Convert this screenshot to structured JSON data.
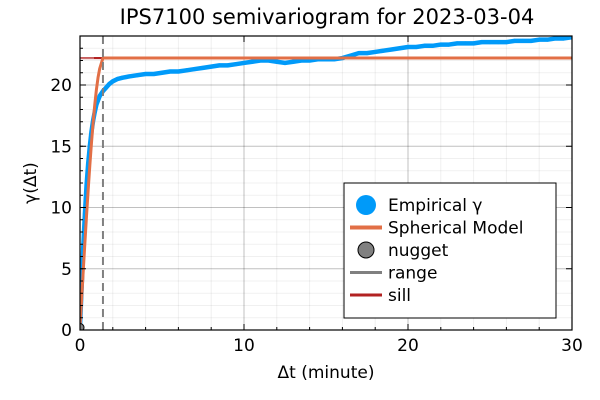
{
  "chart_data": {
    "type": "line",
    "title": "IPS7100 semivariogram for 2023-03-04",
    "xlabel": "Δt (minute)",
    "ylabel": "γ(Δt)",
    "xlim": [
      0,
      30
    ],
    "ylim": [
      0,
      24
    ],
    "x_ticks": [
      0,
      10,
      20,
      30
    ],
    "y_ticks": [
      0,
      5,
      10,
      15,
      20
    ],
    "grid": true,
    "minor_grid": true,
    "legend_position": "bottom-right",
    "legend": [
      {
        "label": "Empirical γ",
        "marker": "circle",
        "color": "#009af9"
      },
      {
        "label": "Spherical Model",
        "marker": "line",
        "color": "#e26f46"
      },
      {
        "label": "nugget",
        "marker": "circle",
        "color": "#808080"
      },
      {
        "label": "range",
        "marker": "line",
        "color": "#808080"
      },
      {
        "label": "sill",
        "marker": "line",
        "color": "#b22222"
      }
    ],
    "series": [
      {
        "name": "Empirical γ",
        "style": "markers",
        "color": "#009af9",
        "x": [
          0.0,
          0.1,
          0.2,
          0.3,
          0.4,
          0.5,
          0.6,
          0.7,
          0.8,
          0.9,
          1.0,
          1.2,
          1.4,
          1.6,
          1.8,
          2.0,
          2.3,
          2.6,
          3.0,
          3.5,
          4.0,
          4.5,
          5.0,
          5.5,
          6.0,
          6.5,
          7.0,
          7.5,
          8.0,
          8.5,
          9.0,
          9.5,
          10.0,
          10.5,
          11.0,
          11.5,
          12.0,
          12.5,
          13.0,
          13.5,
          14.0,
          14.5,
          15.0,
          15.5,
          16.0,
          16.5,
          17.0,
          17.5,
          18.0,
          18.5,
          19.0,
          19.5,
          20.0,
          20.5,
          21.0,
          21.5,
          22.0,
          22.5,
          23.0,
          23.5,
          24.0,
          24.5,
          25.0,
          25.5,
          26.0,
          26.5,
          27.0,
          27.5,
          28.0,
          28.5,
          29.0,
          29.5,
          30.0
        ],
        "y": [
          0.3,
          3.5,
          6.8,
          9.5,
          11.8,
          13.6,
          15.0,
          16.2,
          17.1,
          17.8,
          18.4,
          19.1,
          19.5,
          19.8,
          20.1,
          20.3,
          20.5,
          20.6,
          20.7,
          20.8,
          20.9,
          20.9,
          21.0,
          21.1,
          21.1,
          21.2,
          21.3,
          21.4,
          21.5,
          21.6,
          21.6,
          21.7,
          21.8,
          21.9,
          22.0,
          22.0,
          21.9,
          21.8,
          21.9,
          22.0,
          22.0,
          22.1,
          22.1,
          22.1,
          22.2,
          22.4,
          22.6,
          22.6,
          22.7,
          22.8,
          22.9,
          23.0,
          23.1,
          23.1,
          23.2,
          23.2,
          23.3,
          23.3,
          23.4,
          23.4,
          23.4,
          23.5,
          23.5,
          23.5,
          23.5,
          23.6,
          23.6,
          23.6,
          23.7,
          23.7,
          23.8,
          23.8,
          23.9
        ]
      },
      {
        "name": "Spherical Model",
        "style": "line",
        "color": "#e26f46",
        "nugget": 0.2,
        "sill": 22.2,
        "range": 1.4,
        "x": [
          0.0,
          0.1,
          0.2,
          0.3,
          0.4,
          0.5,
          0.6,
          0.7,
          0.8,
          0.9,
          1.0,
          1.1,
          1.2,
          1.3,
          1.4,
          30.0
        ],
        "y": [
          0.2,
          2.56,
          4.89,
          7.17,
          9.37,
          11.48,
          13.46,
          15.28,
          16.94,
          18.39,
          19.62,
          20.61,
          21.33,
          21.77,
          22.2,
          22.2
        ]
      },
      {
        "name": "nugget",
        "style": "marker",
        "color": "#808080",
        "x": [
          0.0
        ],
        "y": [
          0.2
        ]
      },
      {
        "name": "range",
        "style": "vline",
        "color": "#808080",
        "x": 1.4
      },
      {
        "name": "sill",
        "style": "hline",
        "color": "#b22222",
        "y": 22.2
      }
    ]
  }
}
